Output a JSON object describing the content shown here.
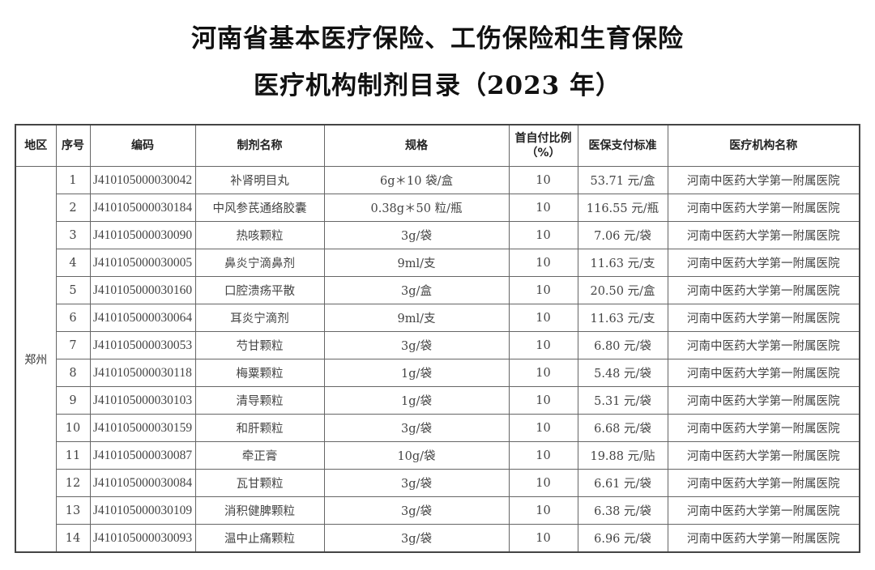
{
  "document": {
    "title_line1": "河南省基本医疗保险、工伤保险和生育保险",
    "title_line2": "医疗机构制剂目录（2023 年）"
  },
  "table": {
    "headers": [
      "地区",
      "序号",
      "编码",
      "制剂名称",
      "规格",
      "首自付比例（%）",
      "医保支付标准",
      "医疗机构名称"
    ],
    "header_ratio_line1": "首自付比例",
    "header_ratio_line2": "（%）",
    "region": "郑州",
    "rows": [
      {
        "no": "1",
        "code": "J410105000030042",
        "name": "补肾明目丸",
        "spec": "6g＊10 袋/盒",
        "ratio": "10",
        "price": "53.71 元/盒",
        "hospital": "河南中医药大学第一附属医院"
      },
      {
        "no": "2",
        "code": "J410105000030184",
        "name": "中风参芪通络胶囊",
        "spec": "0.38g＊50 粒/瓶",
        "ratio": "10",
        "price": "116.55 元/瓶",
        "hospital": "河南中医药大学第一附属医院"
      },
      {
        "no": "3",
        "code": "J410105000030090",
        "name": "热咳颗粒",
        "spec": "3g/袋",
        "ratio": "10",
        "price": "7.06 元/袋",
        "hospital": "河南中医药大学第一附属医院"
      },
      {
        "no": "4",
        "code": "J410105000030005",
        "name": "鼻炎宁滴鼻剂",
        "spec": "9ml/支",
        "ratio": "10",
        "price": "11.63 元/支",
        "hospital": "河南中医药大学第一附属医院"
      },
      {
        "no": "5",
        "code": "J410105000030160",
        "name": "口腔溃疡平散",
        "spec": "3g/盒",
        "ratio": "10",
        "price": "20.50 元/盒",
        "hospital": "河南中医药大学第一附属医院"
      },
      {
        "no": "6",
        "code": "J410105000030064",
        "name": "耳炎宁滴剂",
        "spec": "9ml/支",
        "ratio": "10",
        "price": "11.63 元/支",
        "hospital": "河南中医药大学第一附属医院"
      },
      {
        "no": "7",
        "code": "J410105000030053",
        "name": "芍甘颗粒",
        "spec": "3g/袋",
        "ratio": "10",
        "price": "6.80 元/袋",
        "hospital": "河南中医药大学第一附属医院"
      },
      {
        "no": "8",
        "code": "J410105000030118",
        "name": "梅粟颗粒",
        "spec": "1g/袋",
        "ratio": "10",
        "price": "5.48 元/袋",
        "hospital": "河南中医药大学第一附属医院"
      },
      {
        "no": "9",
        "code": "J410105000030103",
        "name": "清导颗粒",
        "spec": "1g/袋",
        "ratio": "10",
        "price": "5.31 元/袋",
        "hospital": "河南中医药大学第一附属医院"
      },
      {
        "no": "10",
        "code": "J410105000030159",
        "name": "和肝颗粒",
        "spec": "3g/袋",
        "ratio": "10",
        "price": "6.68 元/袋",
        "hospital": "河南中医药大学第一附属医院"
      },
      {
        "no": "11",
        "code": "J410105000030087",
        "name": "牵正膏",
        "spec": "10g/袋",
        "ratio": "10",
        "price": "19.88 元/贴",
        "hospital": "河南中医药大学第一附属医院"
      },
      {
        "no": "12",
        "code": "J410105000030084",
        "name": "瓦甘颗粒",
        "spec": "3g/袋",
        "ratio": "10",
        "price": "6.61 元/袋",
        "hospital": "河南中医药大学第一附属医院"
      },
      {
        "no": "13",
        "code": "J410105000030109",
        "name": "消积健脾颗粒",
        "spec": "3g/袋",
        "ratio": "10",
        "price": "6.38 元/袋",
        "hospital": "河南中医药大学第一附属医院"
      },
      {
        "no": "14",
        "code": "J410105000030093",
        "name": "温中止痛颗粒",
        "spec": "3g/袋",
        "ratio": "10",
        "price": "6.96 元/袋",
        "hospital": "河南中医药大学第一附属医院"
      }
    ]
  }
}
